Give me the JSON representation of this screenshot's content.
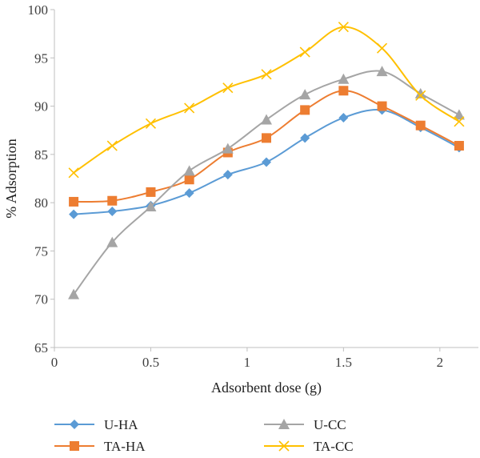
{
  "chart_data": {
    "type": "line",
    "title": "",
    "xlabel": "Adsorbent dose (g)",
    "ylabel": "% Adsorption",
    "xlim": [
      0,
      2.2
    ],
    "ylim": [
      65,
      100
    ],
    "x_ticks": [
      "0",
      "0.5",
      "1",
      "1.5",
      "2"
    ],
    "x_tick_values": [
      0,
      0.5,
      1,
      1.5,
      2
    ],
    "y_ticks": [
      "65",
      "70",
      "75",
      "80",
      "85",
      "90",
      "95",
      "100"
    ],
    "y_tick_values": [
      65,
      70,
      75,
      80,
      85,
      90,
      95,
      100
    ],
    "grid": false,
    "legend_position": "bottom",
    "series": [
      {
        "name": "U-HA",
        "color": "#5B9BD5",
        "marker": "diamond",
        "x": [
          0.1,
          0.3,
          0.5,
          0.7,
          0.9,
          1.1,
          1.3,
          1.5,
          1.7,
          1.9,
          2.1
        ],
        "values": [
          78.8,
          79.1,
          79.7,
          81.0,
          82.9,
          84.2,
          86.7,
          88.8,
          89.6,
          87.8,
          85.7
        ]
      },
      {
        "name": "TA-HA",
        "color": "#ED7D31",
        "marker": "square",
        "x": [
          0.1,
          0.3,
          0.5,
          0.7,
          0.9,
          1.1,
          1.3,
          1.5,
          1.7,
          1.9,
          2.1
        ],
        "values": [
          80.1,
          80.2,
          81.1,
          82.4,
          85.2,
          86.7,
          89.6,
          91.6,
          90.0,
          88.0,
          85.9
        ]
      },
      {
        "name": "U-CC",
        "color": "#A5A5A5",
        "marker": "triangle",
        "x": [
          0.1,
          0.3,
          0.5,
          0.7,
          0.9,
          1.1,
          1.3,
          1.5,
          1.7,
          1.9,
          2.1
        ],
        "values": [
          70.5,
          75.9,
          79.6,
          83.3,
          85.6,
          88.6,
          91.2,
          92.8,
          93.6,
          91.3,
          89.1
        ]
      },
      {
        "name": "TA-CC",
        "color": "#FFC000",
        "marker": "x",
        "x": [
          0.1,
          0.3,
          0.5,
          0.7,
          0.9,
          1.1,
          1.3,
          1.5,
          1.7,
          1.9,
          2.1
        ],
        "values": [
          83.1,
          85.9,
          88.2,
          89.8,
          91.9,
          93.3,
          95.6,
          98.2,
          96.0,
          91.1,
          88.4
        ]
      }
    ]
  }
}
